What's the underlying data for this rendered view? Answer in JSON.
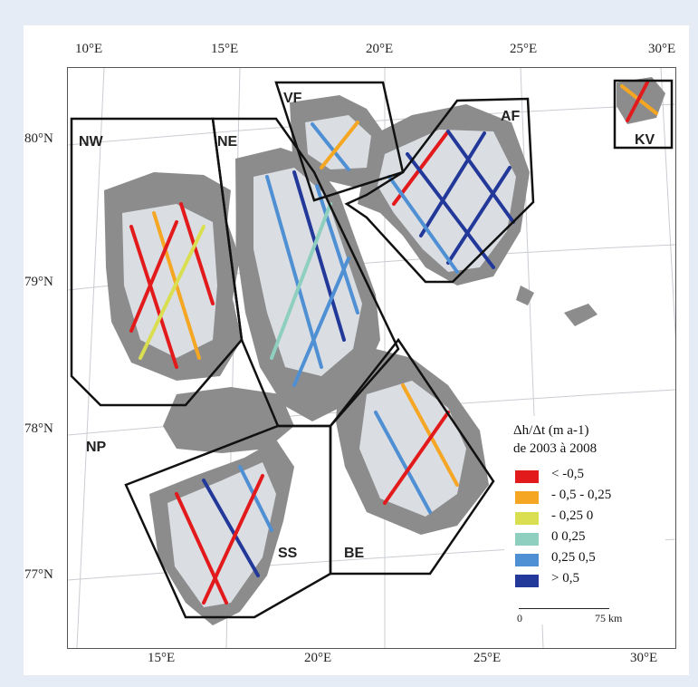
{
  "map": {
    "top_lon_labels": [
      "10°E",
      "15°E",
      "20°E",
      "25°E",
      "30°E"
    ],
    "bottom_lon_labels": [
      "15°E",
      "20°E",
      "25°E",
      "30°E"
    ],
    "lat_labels": [
      "80°N",
      "79°N",
      "78°N",
      "77°N"
    ],
    "regions": [
      "NW",
      "NE",
      "VF",
      "AF",
      "KV",
      "NP",
      "SS",
      "BE"
    ]
  },
  "legend": {
    "title": "Δh/Δt (m a-1)",
    "subtitle": "de 2003 à 2008",
    "items": [
      {
        "label": "< -0,5",
        "color": "#e31a1c"
      },
      {
        "label": "- 0,5  - 0,25",
        "color": "#f5a623"
      },
      {
        "label": "- 0,25  0",
        "color": "#d9df50"
      },
      {
        "label": "0  0,25",
        "color": "#8ecfbf"
      },
      {
        "label": "0,25  0,5",
        "color": "#4f8fd3"
      },
      {
        "label": "> 0,5",
        "color": "#23399a"
      }
    ],
    "scale_start": "0",
    "scale_end": "75 km"
  }
}
